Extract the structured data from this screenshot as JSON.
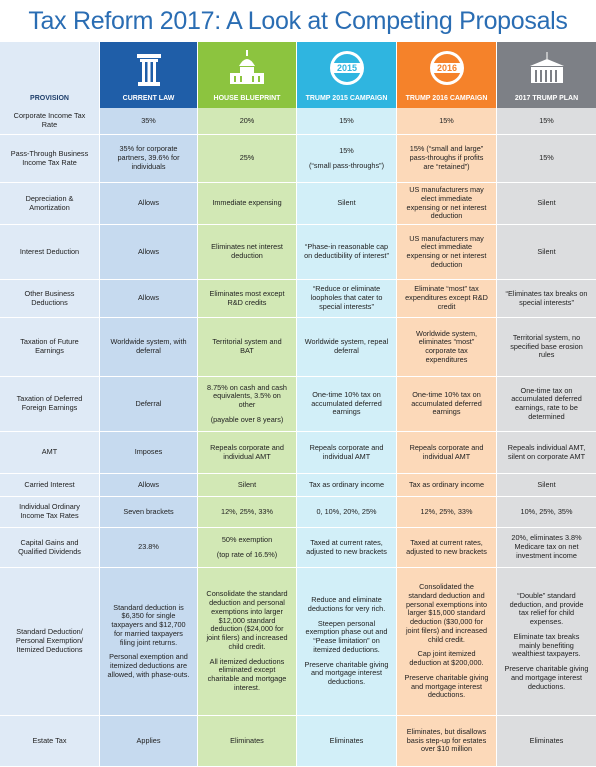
{
  "title": "Tax Reform 2017: A Look at Competing Proposals",
  "columns": [
    {
      "label": "PROVISION"
    },
    {
      "label": "CURRENT LAW"
    },
    {
      "label": "HOUSE BLUEPRINT"
    },
    {
      "label": "TRUMP 2015 CAMPAIGN",
      "badge": "2015"
    },
    {
      "label": "TRUMP 2016 CAMPAIGN",
      "badge": "2016"
    },
    {
      "label": "2017 TRUMP PLAN"
    }
  ],
  "rows": [
    [
      "Corporate Income Tax Rate",
      "35%",
      "20%",
      "15%",
      "15%",
      "15%"
    ],
    [
      "Pass-Through Business Income Tax Rate",
      "35% for corporate partners, 39.6% for individuals",
      "25%",
      [
        "15%",
        "(“small pass-throughs”)"
      ],
      "15% (“small and large” pass-throughs if profits are “retained”)",
      "15%"
    ],
    [
      "Depreciation & Amortization",
      "Allows",
      "Immediate expensing",
      "Silent",
      "US manufacturers may elect immediate expensing or net interest deduction",
      "Silent"
    ],
    [
      "Interest Deduction",
      "Allows",
      "Eliminates net interest deduction",
      "“Phase-in reasonable cap on deductibility of interest”",
      "US manufacturers may elect immediate expensing or net interest deduction",
      "Silent"
    ],
    [
      "Other Business Deductions",
      "Allows",
      "Eliminates most except R&D credits",
      "“Reduce or eliminate loopholes that cater to special interests”",
      "Eliminate “most” tax expenditures except R&D credit",
      "“Eliminates tax breaks on special interests”"
    ],
    [
      "Taxation of Future Earnings",
      "Worldwide system, with deferral",
      "Territorial system and BAT",
      "Worldwide system, repeal deferral",
      "Worldwide system, eliminates “most” corporate tax expenditures",
      "Territorial system, no specified base erosion rules"
    ],
    [
      "Taxation of Deferred Foreign Earnings",
      "Deferral",
      [
        "8.75% on cash and cash equivalents, 3.5% on other",
        "(payable over 8 years)"
      ],
      "One-time 10% tax on accumulated deferred earnings",
      "One-time 10% tax on accumulated deferred earnings",
      "One-time tax on accumulated deferred earnings, rate to be determined"
    ],
    [
      "AMT",
      "Imposes",
      "Repeals corporate and individual AMT",
      "Repeals corporate and individual AMT",
      "Repeals corporate and individual AMT",
      "Repeals individual AMT, silent on corporate AMT"
    ],
    [
      "Carried Interest",
      "Allows",
      "Silent",
      "Tax as ordinary income",
      "Tax as ordinary income",
      "Silent"
    ],
    [
      "Individual Ordinary Income Tax Rates",
      "Seven brackets",
      "12%, 25%, 33%",
      "0, 10%, 20%, 25%",
      "12%, 25%, 33%",
      "10%, 25%, 35%"
    ],
    [
      "Capital Gains and Qualified Dividends",
      "23.8%",
      [
        "50% exemption",
        "(top rate of 16.5%)"
      ],
      "Taxed at current rates, adjusted to new brackets",
      "Taxed at current rates, adjusted to new brackets",
      "20%, eliminates 3.8% Medicare tax on net investment income"
    ],
    [
      "Standard Deduction/ Personal Exemption/ Itemized Deductions",
      [
        "Standard deduction is $6,350 for single taxpayers and $12,700 for married taxpayers filing joint returns.",
        "Personal exemption and itemized deductions are allowed, with phase-outs."
      ],
      [
        "Consolidate the standard deduction and personal exemptions into larger $12,000 standard deduction ($24,000 for joint filers) and increased child credit.",
        "All itemized deductions eliminated except charitable and mortgage interest."
      ],
      [
        "Reduce and eliminate deductions for very rich.",
        "Steepen personal exemption phase out and “Pease limitation” on itemized deductions.",
        "Preserve charitable giving and mortgage interest deductions."
      ],
      [
        "Consolidated the standard deduction and personal exemptions into larger $15,000 standard deduction ($30,000 for joint filers) and increased child credit.",
        "Cap joint itemized deduction at $200,000.",
        "Preserve charitable giving and mortgage interest deductions."
      ],
      [
        "“Double” standard deduction, and provide tax relief for child expenses.",
        "Eliminate tax breaks mainly benefiting wealthiest taxpayers.",
        "Preserve charitable giving and mortgage interest deductions."
      ]
    ],
    [
      "Estate Tax",
      "Applies",
      "Eliminates",
      "Eliminates",
      "Eliminates, but disallows basis step-up for estates over $10 million",
      "Eliminates"
    ]
  ]
}
